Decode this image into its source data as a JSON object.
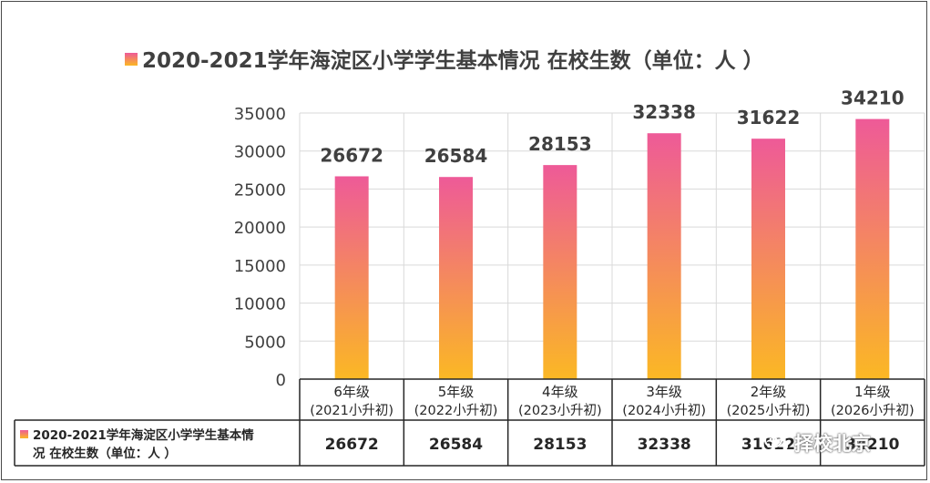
{
  "chart_data": {
    "type": "bar",
    "title": "2020-2021学年海淀区小学学生基本情况 在校生数（单位：人 ）",
    "categories": [
      [
        "6年级",
        "(2021小升初)"
      ],
      [
        "5年级",
        "(2022小升初)"
      ],
      [
        "4年级",
        "(2023小升初)"
      ],
      [
        "3年级",
        "(2024小升初)"
      ],
      [
        "2年级",
        "(2025小升初)"
      ],
      [
        "1年级",
        "(2026小升初)"
      ]
    ],
    "series": [
      {
        "name": "2020-2021学年海淀区小学学生基本情况 在校生数（单位：人 ）",
        "values": [
          26672,
          26584,
          28153,
          32338,
          31622,
          34210
        ]
      }
    ],
    "ylim": [
      0,
      35000
    ],
    "yticks": [
      0,
      5000,
      10000,
      15000,
      20000,
      25000,
      30000,
      35000
    ],
    "grid": true,
    "legend": "data-table-row",
    "data_labels": true
  },
  "colors": {
    "bar_top": "#ee5a98",
    "bar_bottom": "#fbb824",
    "grid": "#d9d9d9",
    "table_border": "#262626"
  },
  "table": {
    "legend_label_line1": "2020-2021学年海淀区小学学生基本情",
    "legend_label_line2": "况 在校生数（单位：人 ）"
  },
  "watermark": {
    "icon": "wechat-icon",
    "text": "择校北京"
  }
}
